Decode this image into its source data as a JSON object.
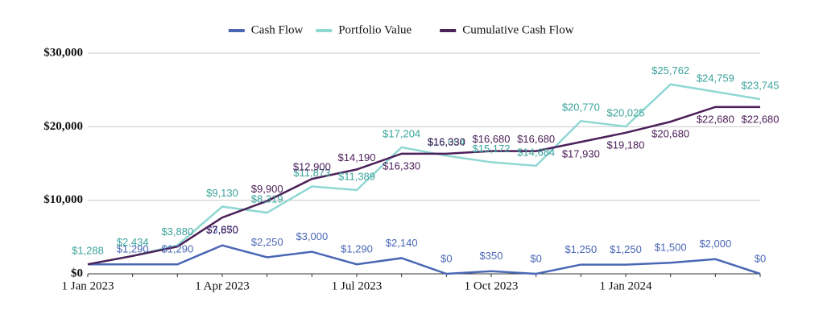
{
  "chart_data": {
    "type": "line",
    "categories": [
      "1 Jan 2023",
      null,
      null,
      "1 Apr 2023",
      null,
      null,
      "1 Jul 2023",
      null,
      null,
      "1 Oct 2023",
      null,
      null,
      "1 Jan 2024",
      null,
      null,
      null
    ],
    "series": [
      {
        "name": "Cash Flow",
        "color": "#4a67b5",
        "label_color": "#4a67b5",
        "values": [
          1290,
          1290,
          1290,
          3870,
          2250,
          3000,
          1290,
          2140,
          0,
          350,
          0,
          1250,
          1250,
          1500,
          2000,
          0
        ],
        "value_labels": [
          null,
          "$1,290",
          "$1,290",
          "$3,870",
          "$2,250",
          "$3,000",
          "$1,290",
          "$2,140",
          "$0",
          "$350",
          "$0",
          "$1,250",
          "$1,250",
          "$1,500",
          "$2,000",
          "$0"
        ]
      },
      {
        "name": "Portfolio Value",
        "color": "#8fd8d2",
        "label_color": "#3aa39b",
        "values": [
          1288,
          2434,
          3880,
          9130,
          8319,
          11873,
          11389,
          17204,
          16054,
          15172,
          14684,
          20770,
          20025,
          25762,
          24759,
          23745
        ],
        "value_labels": [
          "$1,288",
          "$2,434",
          "$3,880",
          "$9,130",
          "$8,319",
          "$11,873",
          "$11,389",
          "$17,204",
          "$16,054",
          "$15,172",
          "$14,684",
          "$20,770",
          "$20,025",
          "$25,762",
          "$24,759",
          "$23,745"
        ]
      },
      {
        "name": "Cumulative Cash Flow",
        "color": "#4c2059",
        "label_color": "#4c2059",
        "values": [
          1290,
          2430,
          3700,
          7650,
          9900,
          12900,
          14190,
          16330,
          16330,
          16680,
          16680,
          17930,
          19180,
          20680,
          22680,
          22680
        ],
        "value_labels": [
          null,
          null,
          null,
          "$7,650",
          "$9,900",
          "$12,900",
          "$14,190",
          "$16,330",
          "$16,330",
          "$16,680",
          "$16,680",
          "$17,930",
          "$19,180",
          "$20,680",
          "$22,680",
          "$22,680"
        ]
      }
    ],
    "ylim": [
      0,
      30000
    ],
    "yticks": [
      {
        "value": 0,
        "label": "$0"
      },
      {
        "value": 10000,
        "label": "$10,000"
      },
      {
        "value": 20000,
        "label": "$20,000"
      },
      {
        "value": 30000,
        "label": "$30,000"
      }
    ],
    "grid": true,
    "legend": "top"
  }
}
